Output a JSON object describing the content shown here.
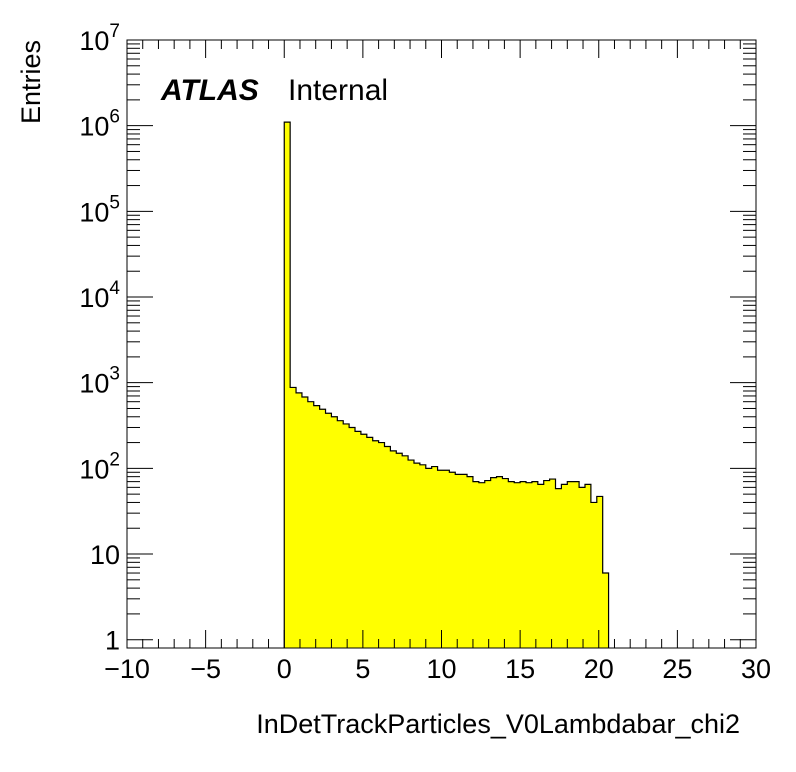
{
  "chart_data": {
    "type": "bar",
    "style": "histogram-step",
    "fill_color": "#ffff00",
    "line_color": "#000000",
    "xlabel": "InDetTrackParticles_V0Lambdabar_chi2",
    "ylabel": "Entries",
    "xlim": [
      -10,
      30
    ],
    "ylim": [
      0.8,
      10000000
    ],
    "y_scale": "log",
    "x_ticks": [
      -10,
      -5,
      0,
      5,
      10,
      15,
      20,
      25,
      30
    ],
    "x_tick_labels": [
      "−10",
      "−5",
      "0",
      "5",
      "10",
      "15",
      "20",
      "25",
      "30"
    ],
    "y_ticks": [
      {
        "value": 1,
        "base": "1",
        "exp": ""
      },
      {
        "value": 10,
        "base": "10",
        "exp": ""
      },
      {
        "value": 100,
        "base": "10",
        "exp": "2"
      },
      {
        "value": 1000,
        "base": "10",
        "exp": "3"
      },
      {
        "value": 10000,
        "base": "10",
        "exp": "4"
      },
      {
        "value": 100000,
        "base": "10",
        "exp": "5"
      },
      {
        "value": 1000000,
        "base": "10",
        "exp": "6"
      },
      {
        "value": 10000000,
        "base": "10",
        "exp": "7"
      }
    ],
    "bin_start": 0,
    "bin_width": 0.375,
    "values": [
      1100000,
      880,
      760,
      680,
      600,
      540,
      490,
      440,
      400,
      360,
      330,
      300,
      270,
      250,
      230,
      210,
      200,
      180,
      160,
      150,
      140,
      125,
      115,
      110,
      100,
      105,
      95,
      95,
      90,
      85,
      85,
      80,
      70,
      68,
      72,
      78,
      80,
      76,
      70,
      68,
      70,
      68,
      70,
      65,
      72,
      75,
      58,
      65,
      70,
      70,
      60,
      65,
      40,
      47,
      6
    ]
  },
  "annotation": {
    "atlas": "ATLAS",
    "label": "Internal"
  }
}
